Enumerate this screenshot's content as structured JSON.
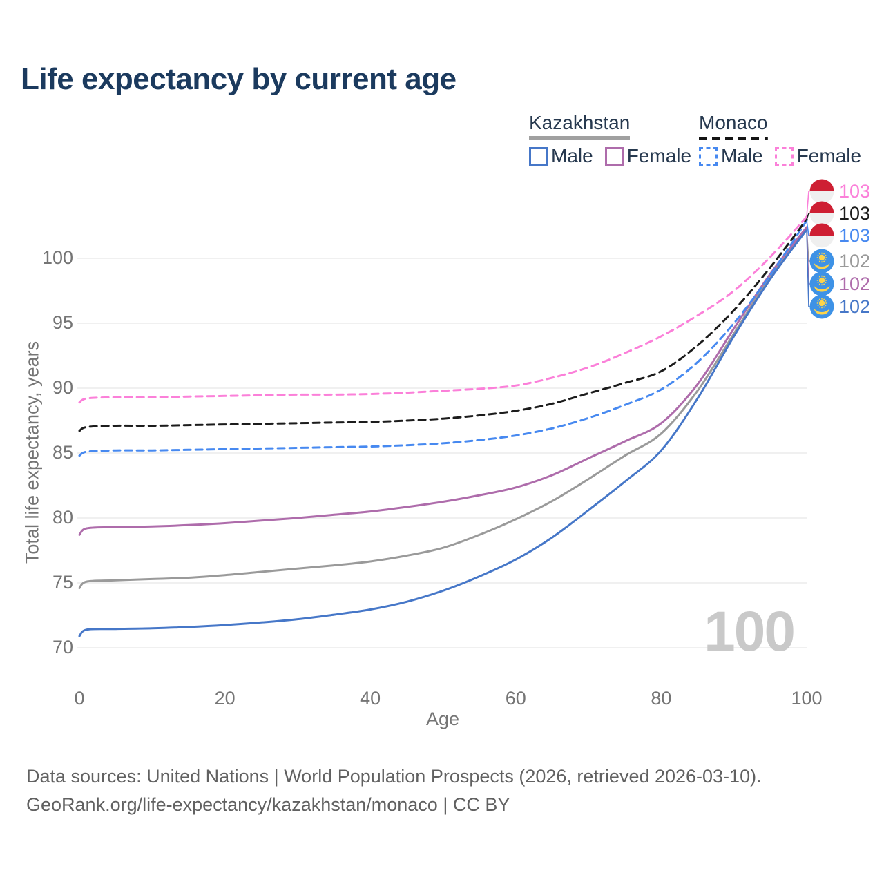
{
  "title": "Life expectancy by current age",
  "watermark": "100",
  "legend": {
    "groups": [
      {
        "country": "Kazakhstan",
        "line_style": "solid",
        "underline_color": "#a0a0a0",
        "items": [
          {
            "label": "Male",
            "color": "#4677c8"
          },
          {
            "label": "Female",
            "color": "#ae6cab"
          }
        ]
      },
      {
        "country": "Monaco",
        "line_style": "dashed",
        "underline_color": "#141414",
        "items": [
          {
            "label": "Male",
            "color": "#4789f0"
          },
          {
            "label": "Female",
            "color": "#fb80d9"
          }
        ]
      }
    ]
  },
  "axes": {
    "y_title": "Total life expectancy, years",
    "x_title": "Age",
    "y_ticks": [
      "100",
      "95",
      "90",
      "85",
      "80",
      "75",
      "70"
    ],
    "y_tick_values": [
      100,
      95,
      90,
      85,
      80,
      75,
      70
    ],
    "x_ticks": [
      "0",
      "20",
      "40",
      "60",
      "80",
      "100"
    ],
    "x_tick_values": [
      0,
      20,
      40,
      60,
      80,
      100
    ]
  },
  "end_labels": [
    {
      "flag": "monaco",
      "value": "103",
      "color": "#fb80d9",
      "series": "Monaco Female"
    },
    {
      "flag": "monaco",
      "value": "103",
      "color": "#1c1c1c",
      "series": "Monaco Both sexes"
    },
    {
      "flag": "monaco",
      "value": "103",
      "color": "#4789f0",
      "series": "Monaco Male"
    },
    {
      "flag": "kazakhstan",
      "value": "102",
      "color": "#9a9a9a",
      "series": "Kazakhstan Both sexes"
    },
    {
      "flag": "kazakhstan",
      "value": "102",
      "color": "#ae6cab",
      "series": "Kazakhstan Female"
    },
    {
      "flag": "kazakhstan",
      "value": "102",
      "color": "#4677c8",
      "series": "Kazakhstan Male"
    }
  ],
  "footer": {
    "line1": "Data sources: United Nations | World Population Prospects (2026, retrieved 2026-03-10).",
    "link": "GeoRank.org/life-expectancy/kazakhstan/monaco",
    "license": " | CC BY"
  },
  "chart_data": {
    "type": "line",
    "title": "Life expectancy by current age",
    "xlabel": "Age",
    "ylabel": "Total life expectancy, years",
    "xlim": [
      0,
      100
    ],
    "ylim": [
      68.5,
      104.5
    ],
    "grid": "horizontal",
    "legend_position": "top-right",
    "x": [
      0,
      1,
      5,
      10,
      15,
      20,
      25,
      30,
      35,
      40,
      45,
      50,
      55,
      60,
      65,
      70,
      75,
      80,
      85,
      90,
      95,
      100
    ],
    "series": [
      {
        "name": "Kazakhstan Both sexes",
        "country": "Kazakhstan",
        "sex": "Both",
        "style": "solid",
        "color": "#9a9a9a",
        "end_label_index": 3,
        "values": [
          74.6,
          75.1,
          75.2,
          75.3,
          75.4,
          75.6,
          75.85,
          76.1,
          76.35,
          76.65,
          77.1,
          77.7,
          78.7,
          79.9,
          81.3,
          83.0,
          84.8,
          86.5,
          89.8,
          94.2,
          98.6,
          102.3
        ]
      },
      {
        "name": "Kazakhstan Female",
        "country": "Kazakhstan",
        "sex": "Female",
        "style": "solid",
        "color": "#ae6cab",
        "end_label_index": 4,
        "values": [
          78.7,
          79.2,
          79.3,
          79.35,
          79.45,
          79.6,
          79.8,
          80.0,
          80.25,
          80.5,
          80.85,
          81.25,
          81.75,
          82.35,
          83.3,
          84.6,
          85.9,
          87.3,
          90.3,
          94.6,
          98.8,
          102.4
        ]
      },
      {
        "name": "Kazakhstan Male",
        "country": "Kazakhstan",
        "sex": "Male",
        "style": "solid",
        "color": "#4677c8",
        "end_label_index": 5,
        "values": [
          70.9,
          71.4,
          71.45,
          71.5,
          71.6,
          71.75,
          71.95,
          72.2,
          72.55,
          72.95,
          73.55,
          74.4,
          75.5,
          76.8,
          78.5,
          80.6,
          82.8,
          85.2,
          89.2,
          94.0,
          98.4,
          102.2
        ]
      },
      {
        "name": "Monaco Male",
        "country": "Monaco",
        "sex": "Male",
        "style": "dashed",
        "color": "#4789f0",
        "end_label_index": 2,
        "values": [
          84.8,
          85.1,
          85.2,
          85.2,
          85.25,
          85.3,
          85.35,
          85.4,
          85.45,
          85.5,
          85.6,
          85.75,
          86.0,
          86.35,
          86.9,
          87.7,
          88.7,
          89.9,
          92.0,
          95.0,
          98.7,
          102.9
        ]
      },
      {
        "name": "Monaco Both sexes",
        "country": "Monaco",
        "sex": "Both",
        "style": "dashed",
        "color": "#1c1c1c",
        "end_label_index": 1,
        "values": [
          86.7,
          87.0,
          87.1,
          87.1,
          87.15,
          87.2,
          87.25,
          87.3,
          87.35,
          87.4,
          87.5,
          87.65,
          87.9,
          88.25,
          88.8,
          89.6,
          90.4,
          91.3,
          93.3,
          96.0,
          99.3,
          103.0
        ]
      },
      {
        "name": "Monaco Female",
        "country": "Monaco",
        "sex": "Female",
        "style": "dashed",
        "color": "#fb80d9",
        "end_label_index": 0,
        "values": [
          88.9,
          89.2,
          89.3,
          89.3,
          89.35,
          89.4,
          89.45,
          89.5,
          89.5,
          89.55,
          89.65,
          89.8,
          89.95,
          90.2,
          90.8,
          91.6,
          92.7,
          94.0,
          95.6,
          97.5,
          100.1,
          103.2
        ]
      }
    ]
  }
}
